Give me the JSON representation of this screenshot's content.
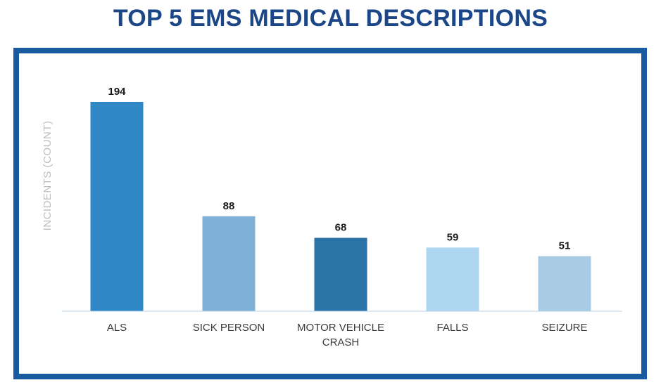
{
  "chart_data": {
    "type": "bar",
    "title": "TOP 5 EMS MEDICAL DESCRIPTIONS",
    "xlabel": "",
    "ylabel": "INCIDENTS (COUNT)",
    "categories": [
      [
        "ALS"
      ],
      [
        "SICK PERSON"
      ],
      [
        "MOTOR VEHICLE",
        "CRASH"
      ],
      [
        "FALLS"
      ],
      [
        "SEIZURE"
      ]
    ],
    "values": [
      194,
      88,
      68,
      59,
      51
    ],
    "value_labels": [
      "194",
      "88",
      "68",
      "59",
      "51"
    ],
    "colors": [
      "#2f87c5",
      "#7fb1d6",
      "#2b73a6",
      "#aed6f1",
      "#a9cce4"
    ],
    "ylim": [
      0,
      194
    ],
    "grid": false,
    "axis_color": "#b9d3e6",
    "frame_color": "#1a5aa0",
    "title_color": "#1b4788"
  }
}
